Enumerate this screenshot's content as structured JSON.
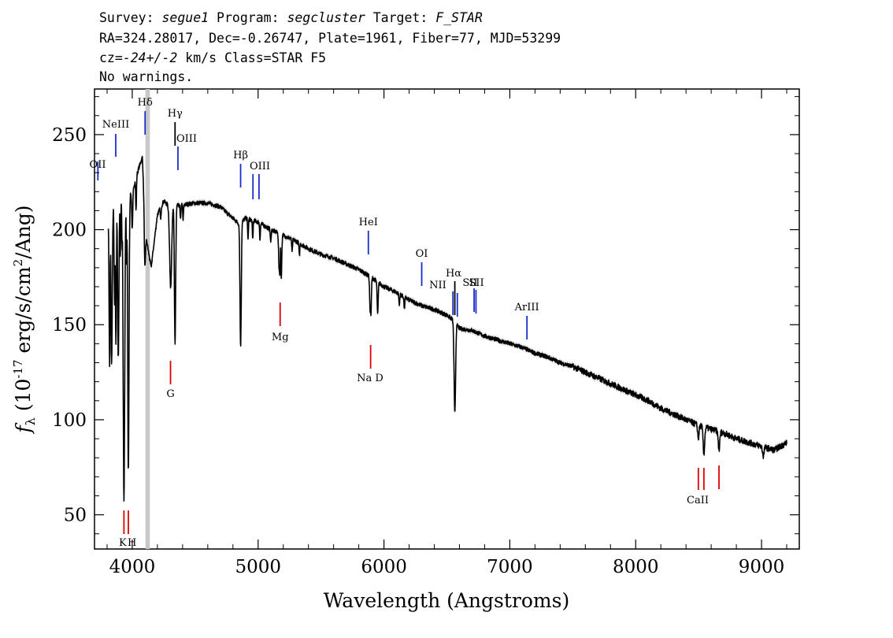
{
  "header": {
    "line1": [
      {
        "text": "Survey: ",
        "italic": false
      },
      {
        "text": "segue1",
        "italic": true
      },
      {
        "text": " Program: ",
        "italic": false
      },
      {
        "text": "segcluster",
        "italic": true
      },
      {
        "text": " Target: ",
        "italic": false
      },
      {
        "text": "F_STAR",
        "italic": true
      }
    ],
    "line2": "RA=324.28017, Dec=-0.26747, Plate=1961, Fiber=77, MJD=53299",
    "line3": [
      {
        "text": "cz=",
        "italic": false
      },
      {
        "text": "-24+/-2",
        "italic": true
      },
      {
        "text": " km/s Class=STAR F5",
        "italic": false
      }
    ],
    "line4": "No warnings."
  },
  "chart_data": {
    "type": "line",
    "xlabel": "Wavelength (Angstroms)",
    "ylabel": "f_λ (10^-17 erg/s/cm^2/Ang)",
    "xlim": [
      3700,
      9300
    ],
    "ylim": [
      32,
      274
    ],
    "x_ticks": [
      4000,
      5000,
      6000,
      7000,
      8000,
      9000
    ],
    "y_ticks": [
      50,
      100,
      150,
      200,
      250
    ],
    "masked_band": [
      4105,
      4140
    ],
    "series": [
      {
        "kind": "spectrum",
        "continuum": [
          [
            3810,
            205
          ],
          [
            3850,
            212
          ],
          [
            3900,
            216
          ],
          [
            3950,
            215
          ],
          [
            4000,
            220
          ],
          [
            4050,
            232
          ],
          [
            4080,
            238
          ],
          [
            4110,
            196
          ],
          [
            4150,
            180
          ],
          [
            4200,
            208
          ],
          [
            4250,
            215
          ],
          [
            4300,
            212
          ],
          [
            4400,
            213
          ],
          [
            4500,
            214
          ],
          [
            4600,
            214
          ],
          [
            4700,
            212
          ],
          [
            4800,
            206
          ],
          [
            4850,
            203
          ],
          [
            4900,
            206
          ],
          [
            5000,
            204
          ],
          [
            5100,
            200
          ],
          [
            5200,
            197
          ],
          [
            5300,
            194
          ],
          [
            5400,
            190
          ],
          [
            5500,
            187
          ],
          [
            5600,
            185
          ],
          [
            5700,
            182
          ],
          [
            5800,
            179
          ],
          [
            5900,
            175
          ],
          [
            6000,
            170
          ],
          [
            6100,
            167
          ],
          [
            6200,
            163
          ],
          [
            6300,
            160
          ],
          [
            6400,
            158
          ],
          [
            6500,
            155
          ],
          [
            6560,
            152
          ],
          [
            6600,
            148
          ],
          [
            6700,
            147
          ],
          [
            6800,
            144
          ],
          [
            6900,
            142
          ],
          [
            7000,
            140
          ],
          [
            7100,
            138
          ],
          [
            7200,
            135
          ],
          [
            7300,
            133
          ],
          [
            7400,
            130
          ],
          [
            7500,
            128
          ],
          [
            7600,
            125
          ],
          [
            7700,
            122
          ],
          [
            7800,
            119
          ],
          [
            7900,
            116
          ],
          [
            8000,
            113
          ],
          [
            8100,
            110
          ],
          [
            8200,
            106
          ],
          [
            8300,
            103
          ],
          [
            8400,
            100
          ],
          [
            8500,
            97
          ],
          [
            8600,
            95
          ],
          [
            8700,
            93
          ],
          [
            8800,
            90
          ],
          [
            8900,
            88
          ],
          [
            9000,
            86
          ],
          [
            9100,
            84
          ],
          [
            9200,
            88
          ]
        ],
        "absorption_lines": [
          [
            3820,
            128,
            4
          ],
          [
            3836,
            130,
            5
          ],
          [
            3860,
            160,
            4
          ],
          [
            3870,
            140,
            4
          ],
          [
            3889,
            132,
            5
          ],
          [
            3905,
            185,
            3
          ],
          [
            3920,
            190,
            3
          ],
          [
            3934,
            57,
            6
          ],
          [
            3955,
            180,
            3
          ],
          [
            3969,
            72,
            5
          ],
          [
            4000,
            200,
            4
          ],
          [
            4030,
            210,
            3
          ],
          [
            4101,
            180,
            5
          ],
          [
            4226,
            205,
            3
          ],
          [
            4305,
            170,
            8
          ],
          [
            4340,
            140,
            5
          ],
          [
            4383,
            205,
            3
          ],
          [
            4404,
            205,
            3
          ],
          [
            4861,
            138,
            5
          ],
          [
            4920,
            195,
            3
          ],
          [
            4957,
            195,
            3
          ],
          [
            5015,
            195,
            3
          ],
          [
            5100,
            193,
            3
          ],
          [
            5167,
            178,
            4
          ],
          [
            5172,
            176,
            4
          ],
          [
            5184,
            175,
            4
          ],
          [
            5270,
            188,
            3
          ],
          [
            5328,
            186,
            3
          ],
          [
            5890,
            157,
            4
          ],
          [
            5896,
            155,
            4
          ],
          [
            5950,
            155,
            4
          ],
          [
            6122,
            160,
            3
          ],
          [
            6162,
            158,
            3
          ],
          [
            6563,
            103,
            6
          ],
          [
            8498,
            90,
            5
          ],
          [
            8542,
            82,
            6
          ],
          [
            8662,
            84,
            6
          ],
          [
            9014,
            81,
            6
          ]
        ]
      }
    ],
    "emission_markers": [
      {
        "label": "OII",
        "lambda": 3727
      },
      {
        "label": "NeIII",
        "lambda": 3869
      },
      {
        "label": "Hδ",
        "lambda": 4102
      },
      {
        "label": "Hγ",
        "lambda": 4340
      },
      {
        "label": "OIII",
        "lambda": 4363
      },
      {
        "label": "Hβ",
        "lambda": 4861
      },
      {
        "label": "OIII",
        "lambda": 4959
      },
      {
        "label": "OIII",
        "lambda": 5007
      },
      {
        "label": "HeI",
        "lambda": 5876
      },
      {
        "label": "OI",
        "lambda": 6300
      },
      {
        "label": "NII",
        "lambda": 6548
      },
      {
        "label": "Hα",
        "lambda": 6563
      },
      {
        "label": "NII",
        "lambda": 6583
      },
      {
        "label": "SII",
        "lambda": 6716
      },
      {
        "label": "SII",
        "lambda": 6731
      },
      {
        "label": "ArIII",
        "lambda": 7136
      }
    ],
    "absorption_markers": [
      {
        "label": "K",
        "lambda": 3934
      },
      {
        "label": "H",
        "lambda": 3969
      },
      {
        "label": "G",
        "lambda": 4304
      },
      {
        "label": "Mg",
        "lambda": 5175
      },
      {
        "label": "Na D",
        "lambda": 5894
      },
      {
        "label": "CaII",
        "lambda": 8498
      },
      {
        "label": "CaII",
        "lambda": 8542
      },
      {
        "label": "CaII",
        "lambda": 8662
      }
    ],
    "colors": {
      "spectrum": "#000000",
      "error_band": "#bbbbbb",
      "emission": "#1a2ecc",
      "absorption": "#dd0000",
      "mask": "#c8c8c8"
    }
  }
}
